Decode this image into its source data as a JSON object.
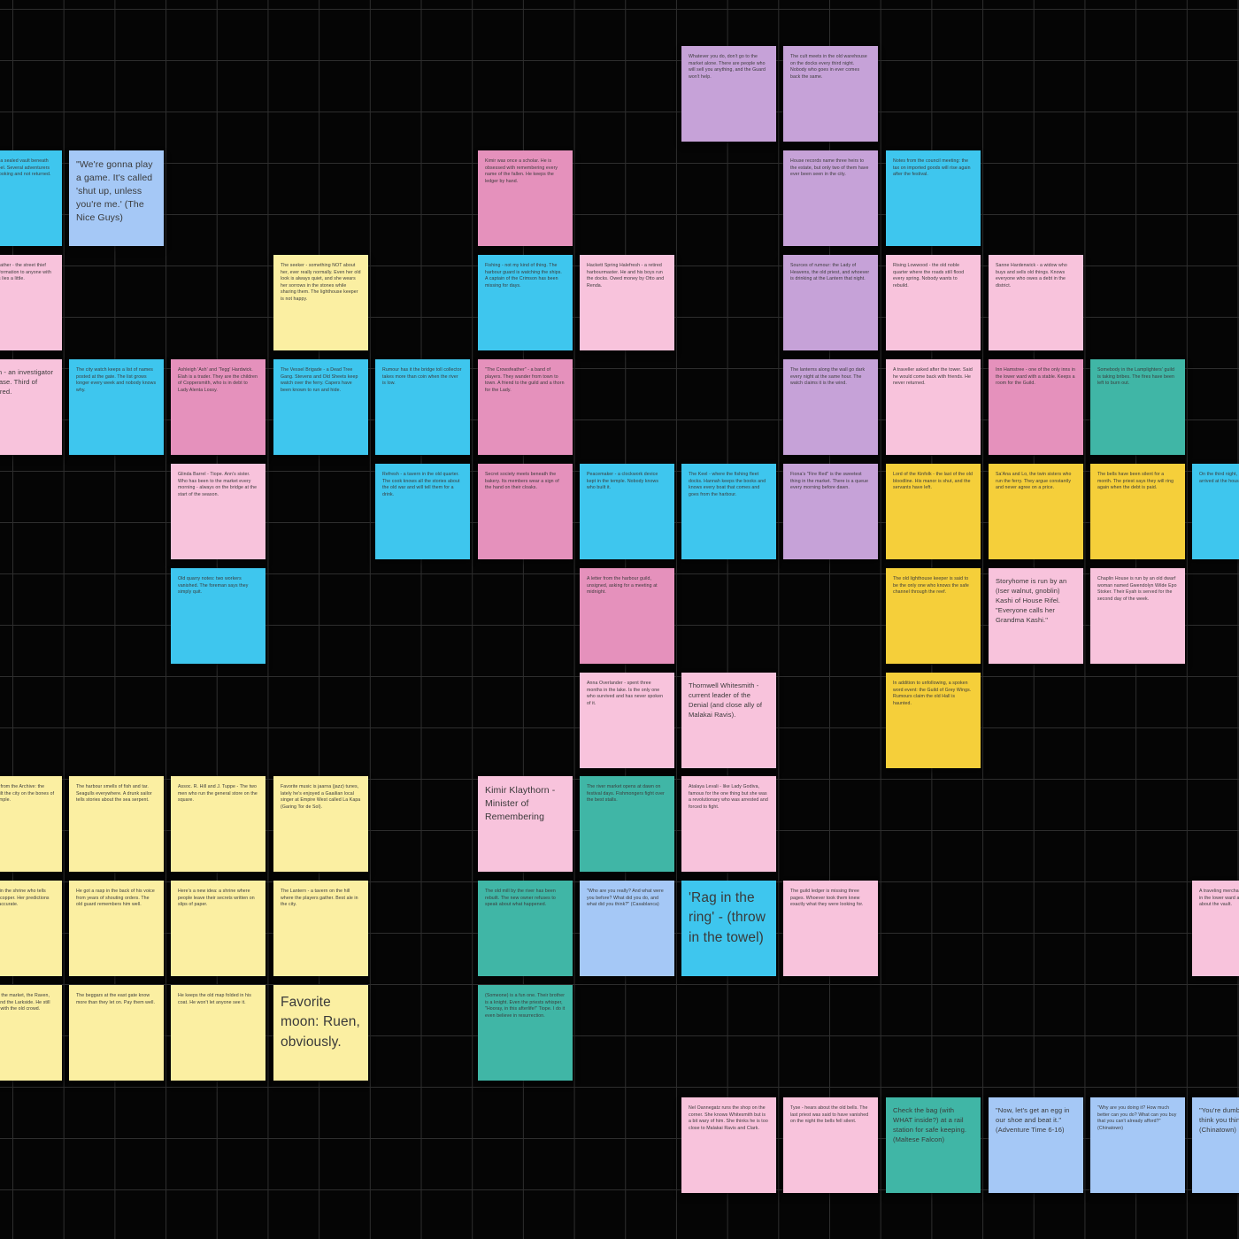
{
  "colors": {
    "purple": "#c6a2d8",
    "pink": "#f8c3dc",
    "magenta": "#e591bc",
    "cyan": "#3ec6ee",
    "blue": "#a5c8f6",
    "yellow": "#fbefa2",
    "gold": "#f5cf3a",
    "teal": "#40b6a6"
  },
  "notes": [
    {
      "text": "Whatever you do, don't go to the market alone. There are people who will sell you anything, and the Guard won't help.",
      "color": "purple",
      "size": "s"
    },
    {
      "text": "The cult meets in the old warehouse on the docks every third night. Nobody who goes in ever comes back the same.",
      "color": "purple",
      "size": "s"
    },
    {
      "text": "Rumours of a sealed vault beneath the old chapel. Several adventurers have gone looking and not returned.",
      "color": "cyan",
      "size": "s"
    },
    {
      "text": "\"We're gonna play a game. It's called 'shut up, unless you're me.' (The Nice Guys)",
      "color": "blue",
      "size": "l"
    },
    {
      "text": "Kimir was once a scholar. He is obsessed with remembering every name of the fallen. He keeps the ledger by hand.",
      "color": "magenta",
      "size": "s"
    },
    {
      "text": "House records name three heirs to the estate, but only two of them have ever been seen in the city.",
      "color": "purple",
      "size": "s"
    },
    {
      "text": "Notes from the council meeting: the tax on imported goods will rise again after the festival.",
      "color": "cyan",
      "size": "s"
    },
    {
      "text": "Silly Red Feather - the street thief who sells information to anyone with coin. Always lies a little.",
      "color": "pink",
      "size": "s"
    },
    {
      "text": "The seeker - something NOT about her, ever really normally. Even her old look is always quiet, and she wears her sorrows in the stones while sharing them. The lighthouse keeper is not happy.",
      "color": "yellow",
      "size": "s"
    },
    {
      "text": "Fishing - not my kind of thing. The harbour guard is watching the ships. A captain of the Crimson has been missing for days.",
      "color": "cyan",
      "size": "s"
    },
    {
      "text": "Hackett Spring Halefresh - a retired harbourmaster. He and his boys run the docks. Owed money by Otto and Renda.",
      "color": "pink",
      "size": "s"
    },
    {
      "text": "Sources of rumour: the Lady of Heavens, the old priest, and whoever is drinking at the Lantern that night.",
      "color": "purple",
      "size": "s"
    },
    {
      "text": "Rising Lowwood - the old noble quarter where the roads still flood every spring. Nobody wants to rebuild.",
      "color": "pink",
      "size": "s"
    },
    {
      "text": "Sanne Hardenwick - a widow who buys and sells old things. Knows everyone who owes a debt in the district.",
      "color": "pink",
      "size": "s"
    },
    {
      "text": "Daisburn - an investigator on the case. Third of many. Tired.",
      "color": "pink",
      "size": "m"
    },
    {
      "text": "The city watch keeps a list of names posted at the gate. The list grows longer every week and nobody knows why.",
      "color": "cyan",
      "size": "s"
    },
    {
      "text": "Ashleigh 'Ash' and 'Tegg' Hardwick. Elah is a trader. They are the children of Coppersmith, who is in debt to Lady Alenta Lossy.",
      "color": "magenta",
      "size": "s"
    },
    {
      "text": "The Vessel Brigade - a Dead Tree Gang. Stevens and Old Sheets keep watch over the ferry. Capers have been known to run and hide.",
      "color": "cyan",
      "size": "s"
    },
    {
      "text": "Rumour has it the bridge toll collector takes more than coin when the river is low.",
      "color": "cyan",
      "size": "s"
    },
    {
      "text": "\"The Crowsfeather\" - a band of players. They wander from town to town. A friend to the guild and a thorn for the Lady.",
      "color": "magenta",
      "size": "s"
    },
    {
      "text": "The lanterns along the wall go dark every night at the same hour. The watch claims it is the wind.",
      "color": "purple",
      "size": "s"
    },
    {
      "text": "A traveller asked after the tower. Said he would come back with friends. He never returned.",
      "color": "pink",
      "size": "s"
    },
    {
      "text": "Inn Hamstree - one of the only inns in the lower ward with a stable. Keeps a room for the Guild.",
      "color": "magenta",
      "size": "s"
    },
    {
      "text": "Somebody in the Lamplighters' guild is taking bribes. The fires have been left to burn out.",
      "color": "teal",
      "size": "s"
    },
    {
      "text": "Glinda Barrel - Tiope. Ann's sister. Who has been to the market every morning - always on the bridge at the start of the season.",
      "color": "pink",
      "size": "s"
    },
    {
      "text": "Refresh - a tavern in the old quarter. The cook knows all the stories about the old war and will tell them for a drink.",
      "color": "cyan",
      "size": "s"
    },
    {
      "text": "Secret society meets beneath the bakery. Its members wear a sign of the hand on their cloaks.",
      "color": "magenta",
      "size": "s"
    },
    {
      "text": "Peacemaker - a clockwork device kept in the temple. Nobody knows who built it.",
      "color": "cyan",
      "size": "s"
    },
    {
      "text": "The Keel - where the fishing fleet docks. Hannah keeps the books and knows every boat that comes and goes from the harbour.",
      "color": "cyan",
      "size": "s"
    },
    {
      "text": "Fiona's \"Fire Red\" is the sweetest thing in the market. There is a queue every morning before dawn.",
      "color": "purple",
      "size": "s"
    },
    {
      "text": "Lord of the Kinfolk - the last of the old bloodline. His manor is shut, and the servants have left.",
      "color": "gold",
      "size": "s"
    },
    {
      "text": "Sa'Ana and Lo, the twin sisters who run the ferry. They argue constantly and never agree on a price.",
      "color": "gold",
      "size": "s"
    },
    {
      "text": "The bells have been silent for a month. The priest says they will ring again when the debt is paid.",
      "color": "gold",
      "size": "s"
    },
    {
      "text": "On the third night, Nellana the courier arrived at the house of the dead.",
      "color": "cyan",
      "size": "s"
    },
    {
      "text": "Old quarry notes: two workers vanished. The foreman says they simply quit.",
      "color": "cyan",
      "size": "s"
    },
    {
      "text": "A letter from the harbour guild, unsigned, asking for a meeting at midnight.",
      "color": "magenta",
      "size": "s"
    },
    {
      "text": "The old lighthouse keeper is said to be the only one who knows the safe channel through the reef.",
      "color": "gold",
      "size": "s"
    },
    {
      "text": "Storyhome is run by an (Iser walnut, gnoblin) Kashi of House Rifel. \"Everyone calls her Grandma Kashi.\"",
      "color": "pink",
      "size": "m"
    },
    {
      "text": "Chaplin House is run by an old dwarf woman named Gwendolyn Wilde Epo Stoker. Their Eyah is served for the second day of the week.",
      "color": "pink",
      "size": "s"
    },
    {
      "text": "Anna Overlander - spent three months in the lake. Is the only one who survived and has never spoken of it.",
      "color": "pink",
      "size": "s"
    },
    {
      "text": "Thornwell Whitesmith - current leader of the Denial (and close ally of Malakai Ravis).",
      "color": "pink",
      "size": "m"
    },
    {
      "text": "In addition to unfollowing, a spoken word event: the Guild of Grey Wings. Rumours claim the old Hall is haunted.",
      "color": "gold",
      "size": "s"
    },
    {
      "text": "Old records from the Archive: the founders built the city on the bones of a sunken temple.",
      "color": "yellow",
      "size": "s"
    },
    {
      "text": "The harbour smells of fish and tar. Seagulls everywhere. A drunk sailor tells stories about the sea serpent.",
      "color": "yellow",
      "size": "s"
    },
    {
      "text": "Assoc. R. Hill and J. Tuppe - The two men who run the general store on the square.",
      "color": "yellow",
      "size": "s"
    },
    {
      "text": "Favorite music is jaarna (jazz) tunes, lately he's enjoyed a Gaailian local singer at Empire West called La Kapa (Garing Tor de Sol).",
      "color": "yellow",
      "size": "s"
    },
    {
      "text": "Kimir Klaythorn - Minister of Remembering",
      "color": "pink",
      "size": "l"
    },
    {
      "text": "The river market opens at dawn on festival days. Fishmongers fight over the best stalls.",
      "color": "teal",
      "size": "s"
    },
    {
      "text": "Atalaya Levali - like Lady Godiva, famous for the one thing but she was a revolutionary who was arrested and forced to fight.",
      "color": "pink",
      "size": "s"
    },
    {
      "text": "Old woman in the shrine who tells fortunes for copper. Her predictions are always accurate.",
      "color": "yellow",
      "size": "s"
    },
    {
      "text": "He got a rasp in the back of his voice from years of shouting orders. The old guard remembers him well.",
      "color": "yellow",
      "size": "s"
    },
    {
      "text": "Here's a new idea: a shrine where people leave their secrets written on slips of paper.",
      "color": "yellow",
      "size": "s"
    },
    {
      "text": "The Lantern - a tavern on the hill where the players gather. Best ale in the city.",
      "color": "yellow",
      "size": "s"
    },
    {
      "text": "The old mill by the river has been rebuilt. The new owner refuses to speak about what happened.",
      "color": "teal",
      "size": "s"
    },
    {
      "text": "\"Who are you really? And what were you before? What did you do, and what did you think?\" (Casablanca)",
      "color": "blue",
      "size": "s"
    },
    {
      "text": "'Rag in the ring' - (throw in the towel)",
      "color": "cyan",
      "size": "xl"
    },
    {
      "text": "The guild ledger is missing three pages. Whoever took them knew exactly what they were looking for.",
      "color": "pink",
      "size": "s"
    },
    {
      "text": "A traveling merchant has been seen in the lower ward asking questions about the vault.",
      "color": "pink",
      "size": "s"
    },
    {
      "text": "Frequenting the market, the Raven, the Fidelis and the Larkside. He still keeps a tab with the old crowd.",
      "color": "yellow",
      "size": "s"
    },
    {
      "text": "The beggars at the east gate know more than they let on. Pay them well.",
      "color": "yellow",
      "size": "s"
    },
    {
      "text": "He keeps the old map folded in his coat. He won't let anyone see it.",
      "color": "yellow",
      "size": "s"
    },
    {
      "text": "Favorite moon: Ruen, obviously.",
      "color": "yellow",
      "size": "xl"
    },
    {
      "text": "(Someone) is a fun one. Their brother is a knight. Even the priests whisper, \"Hooray, in this afterlife!\" Tiope. I do it even believe in resurrection.",
      "color": "teal",
      "size": "s"
    },
    {
      "text": "Nel Oannegatz runs the shop on the corner. She knows Whitesmith but is a bit wary of him. She thinks he is too close to Malakai Ravis and Clark.",
      "color": "pink",
      "size": "s"
    },
    {
      "text": "Tyse - hears about the old bells. The last priest was said to have vanished on the night the bells fell silent.",
      "color": "pink",
      "size": "s"
    },
    {
      "text": "Check the bag (with WHAT inside?) at a rail station for safe keeping. (Maltese Falcon)",
      "color": "teal",
      "size": "m"
    },
    {
      "text": "\"Now, let's get an egg in our shoe and beat it.\" (Adventure Time 6-16)",
      "color": "blue",
      "size": "m"
    },
    {
      "text": "\"Why are you doing it? How much better can you do? What can you buy that you can't already afford?\" (Chinatown)",
      "color": "blue",
      "size": "s"
    },
    {
      "text": "\"You're dumber than you think you think you are.\" (Chinatown)",
      "color": "blue",
      "size": "m"
    }
  ]
}
